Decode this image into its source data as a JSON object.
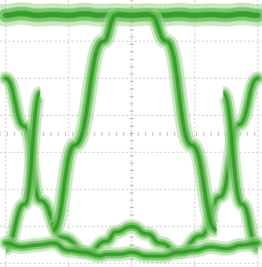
{
  "chart_data": {
    "type": "line",
    "title": "",
    "xlabel": "",
    "ylabel": "",
    "grid": true,
    "grid_divisions": {
      "x": 4,
      "y": 7
    },
    "colors": {
      "trace_core": "#2f9a22",
      "trace_mid": "#5ab84c",
      "trace_soft": "#9fd68f",
      "grid": "#b8b8b8",
      "center_ticks": "#9a9a9a",
      "background": "#ffffff"
    },
    "xlim": [
      0,
      4
    ],
    "ylim": [
      0,
      7
    ],
    "series": [
      {
        "values_note": "",
        "x": [
          0,
          0.3,
          0.55,
          0.9,
          1.3,
          1.6,
          1.75,
          2.0,
          2.25,
          2.45,
          2.75,
          3.1,
          3.4,
          3.7,
          4.0
        ],
        "y": [
          5.0,
          3.7,
          1.7,
          0.7,
          0.3,
          0.6,
          0.85,
          1.0,
          0.8,
          0.55,
          0.3,
          0.75,
          1.8,
          3.75,
          5.0
        ]
      },
      {
        "x": [
          0,
          0.25,
          0.5,
          0.75,
          1.0,
          1.25,
          1.5,
          1.6,
          1.8,
          2.0,
          2.25,
          2.5,
          2.75,
          3.0,
          3.25,
          3.5,
          3.75,
          4.0
        ],
        "y": [
          0.55,
          0.45,
          0.5,
          0.55,
          0.35,
          0.3,
          0.2,
          0.25,
          0.25,
          0.3,
          0.2,
          0.2,
          0.3,
          0.35,
          0.45,
          0.4,
          0.5,
          0.55
        ]
      },
      {
        "x": [
          0,
          0.25,
          0.5,
          0.75,
          1.0,
          1.25,
          1.5,
          1.75,
          2.0,
          2.25,
          2.5,
          2.75,
          3.0,
          3.25,
          3.5,
          3.75,
          4.0
        ],
        "y": [
          6.7,
          6.75,
          6.7,
          6.72,
          6.7,
          6.74,
          6.7,
          6.72,
          6.7,
          6.72,
          6.7,
          6.73,
          6.7,
          6.72,
          6.7,
          6.74,
          6.7
        ]
      }
    ]
  }
}
